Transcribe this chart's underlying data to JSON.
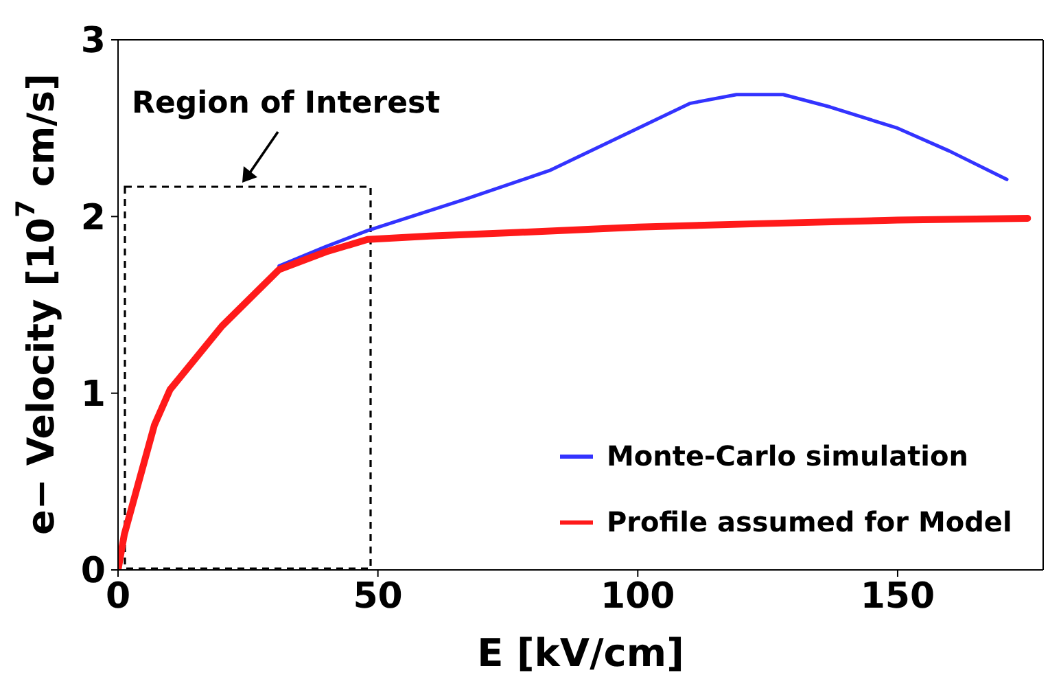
{
  "chart_data": {
    "type": "line",
    "xlabel": "E [kV/cm]",
    "ylabel": "e− Velocity [10$^{7}$ cm/s]",
    "annotations": [
      "Region of Interest"
    ],
    "xlim": [
      0,
      178
    ],
    "xticks": [
      0,
      50,
      100,
      150
    ],
    "ylim": [
      0,
      3
    ],
    "yticks": [
      0,
      1,
      2,
      3
    ],
    "grid": false,
    "legend": "bottom right",
    "marker": "none",
    "line_style": "solid",
    "series": [
      {
        "name": "Monte-Carlo simulation",
        "color": "#3333ff",
        "x": [
          31,
          40,
          48,
          67,
          83,
          110,
          119,
          128,
          137,
          150,
          160,
          171
        ],
        "values": [
          1.72,
          1.83,
          1.92,
          2.1,
          2.26,
          2.64,
          2.69,
          2.69,
          2.62,
          2.5,
          2.37,
          2.21
        ]
      },
      {
        "name": "Profile assumed for Model",
        "color": "#ff1a1a",
        "x": [
          0,
          1.2,
          4,
          7,
          10,
          20,
          31,
          40,
          48,
          60,
          77,
          100,
          124,
          150,
          175
        ],
        "values": [
          0,
          0.2,
          0.5,
          0.82,
          1.02,
          1.38,
          1.7,
          1.8,
          1.87,
          1.89,
          1.91,
          1.94,
          1.96,
          1.98,
          1.99
        ]
      }
    ]
  }
}
